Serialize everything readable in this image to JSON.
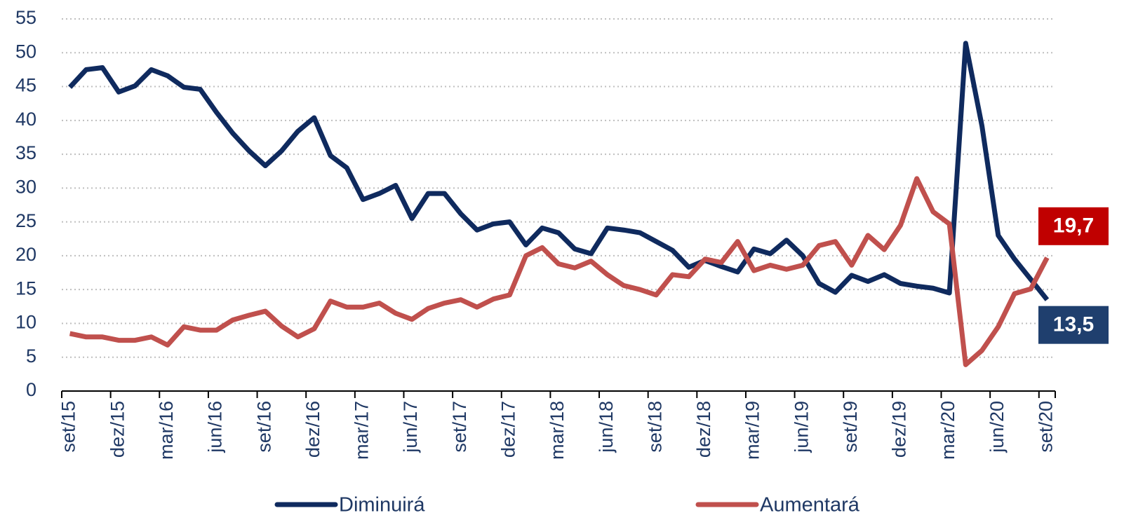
{
  "chart_data": {
    "type": "line",
    "categories": [
      "set/15",
      null,
      null,
      "dez/15",
      null,
      null,
      "mar/16",
      null,
      null,
      "jun/16",
      null,
      null,
      "set/16",
      null,
      null,
      "dez/16",
      null,
      null,
      "mar/17",
      null,
      null,
      "jun/17",
      null,
      null,
      "set/17",
      null,
      null,
      "dez/17",
      null,
      null,
      "mar/18",
      null,
      null,
      "jun/18",
      null,
      null,
      "set/18",
      null,
      null,
      "dez/18",
      null,
      null,
      "mar/19",
      null,
      null,
      "jun/19",
      null,
      null,
      "set/19",
      null,
      null,
      "dez/19",
      null,
      null,
      "mar/20",
      null,
      null,
      "jun/20",
      null,
      null,
      "set/20"
    ],
    "series": [
      {
        "name": "Diminuirá",
        "color": "#0f2a5e",
        "values": [
          44.9,
          47.5,
          47.8,
          44.2,
          45.1,
          47.5,
          46.6,
          44.9,
          44.6,
          41.2,
          38.1,
          35.5,
          33.3,
          35.5,
          38.4,
          40.4,
          34.8,
          33.0,
          28.3,
          29.2,
          30.4,
          25.5,
          29.2,
          29.2,
          26.2,
          23.8,
          24.7,
          25.0,
          21.6,
          24.1,
          23.4,
          21.0,
          20.3,
          24.1,
          23.8,
          23.4,
          22.1,
          20.8,
          18.3,
          19.3,
          18.4,
          17.6,
          21.0,
          20.3,
          22.3,
          20.0,
          15.9,
          14.6,
          17.1,
          16.2,
          17.2,
          15.9,
          15.5,
          15.2,
          14.5,
          51.4,
          39.2,
          23.0,
          19.5,
          16.5,
          13.5
        ],
        "value_labels": [
          null,
          null,
          null,
          null,
          null,
          null,
          null,
          null,
          null,
          null,
          null,
          null,
          null,
          null,
          null,
          null,
          null,
          null,
          null,
          null,
          null,
          null,
          null,
          null,
          null,
          null,
          null,
          null,
          null,
          null,
          null,
          null,
          null,
          null,
          null,
          null,
          null,
          null,
          null,
          null,
          null,
          null,
          null,
          null,
          null,
          null,
          null,
          null,
          null,
          null,
          null,
          null,
          null,
          null,
          null,
          null,
          null,
          null,
          null,
          null,
          "13,5"
        ],
        "label_color": "#1f3f6e"
      },
      {
        "name": "Aumentará",
        "color": "#c0504d",
        "values": [
          8.5,
          8.0,
          8.0,
          7.5,
          7.5,
          8.0,
          6.8,
          9.5,
          9.0,
          9.0,
          10.5,
          11.2,
          11.8,
          9.6,
          8.0,
          9.2,
          13.3,
          12.4,
          12.4,
          13.0,
          11.5,
          10.6,
          12.2,
          13.0,
          13.5,
          12.4,
          13.6,
          14.2,
          20.0,
          21.2,
          18.8,
          18.2,
          19.2,
          17.2,
          15.6,
          15.0,
          14.2,
          17.2,
          16.9,
          19.5,
          19.0,
          22.1,
          17.8,
          18.6,
          18.0,
          18.6,
          21.5,
          22.1,
          18.6,
          23.0,
          20.9,
          24.5,
          31.4,
          26.5,
          24.7,
          3.9,
          6.0,
          9.5,
          14.4,
          15.1,
          19.7
        ],
        "value_labels": [
          null,
          null,
          null,
          null,
          null,
          null,
          null,
          null,
          null,
          null,
          null,
          null,
          null,
          null,
          null,
          null,
          null,
          null,
          null,
          null,
          null,
          null,
          null,
          null,
          null,
          null,
          null,
          null,
          null,
          null,
          null,
          null,
          null,
          null,
          null,
          null,
          null,
          null,
          null,
          null,
          null,
          null,
          null,
          null,
          null,
          null,
          null,
          null,
          null,
          null,
          null,
          null,
          null,
          null,
          null,
          null,
          null,
          null,
          null,
          null,
          "19,7"
        ],
        "label_color": "#c00000"
      }
    ],
    "ylim": [
      0,
      55
    ],
    "yticks": [
      0,
      5,
      10,
      15,
      20,
      25,
      30,
      35,
      40,
      45,
      50,
      55
    ],
    "grid": true,
    "legend": "bottom"
  }
}
